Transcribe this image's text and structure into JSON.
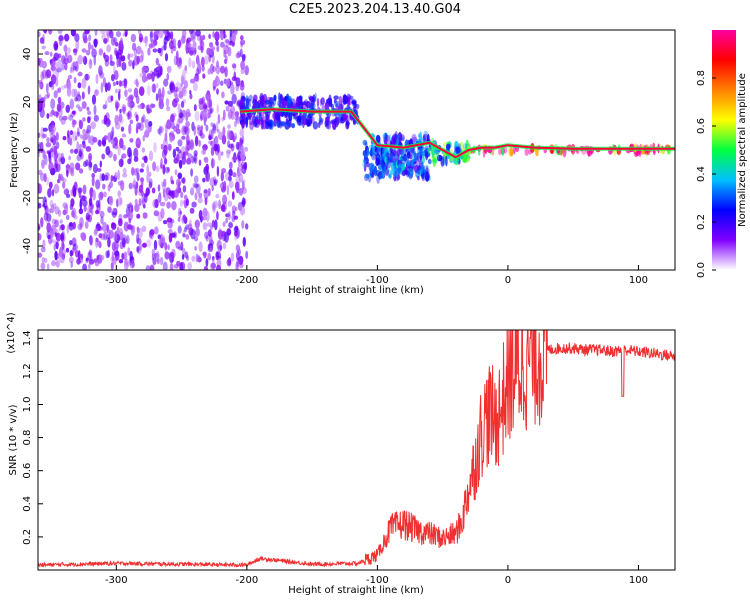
{
  "title": "C2E5.2023.204.13.40.G04",
  "chart_data": [
    {
      "type": "heatmap",
      "xlabel": "Height of straight line (km)",
      "ylabel": "Frequency (Hz)",
      "xlim": [
        -360,
        128
      ],
      "ylim": [
        -50,
        50
      ],
      "xticks": [
        -300,
        -200,
        -100,
        0,
        100
      ],
      "yticks": [
        -40,
        -20,
        0,
        20,
        40
      ],
      "grid": false,
      "regions": [
        {
          "x": [
            -360,
            -200
          ],
          "y": [
            -50,
            50
          ],
          "intensity": 0.12,
          "note_values": "scattered low-amplitude noise"
        },
        {
          "x": [
            -205,
            -115
          ],
          "y": [
            10,
            22
          ],
          "intensity": 0.22
        },
        {
          "x": [
            -110,
            -60
          ],
          "y": [
            -12,
            6
          ],
          "intensity": 0.3
        },
        {
          "x": [
            -60,
            -30
          ],
          "y": [
            -5,
            3
          ],
          "intensity": 0.45
        },
        {
          "x": [
            -30,
            128
          ],
          "y": [
            -1,
            1
          ],
          "intensity": 0.95
        }
      ],
      "ridge": {
        "x": [
          -205,
          -180,
          -150,
          -120,
          -100,
          -80,
          -60,
          -50,
          -40,
          -30,
          -20,
          -10,
          0,
          20,
          50,
          80,
          100,
          128
        ],
        "y": [
          16,
          17,
          16,
          16,
          2,
          1,
          3,
          0,
          -3,
          0,
          1,
          1,
          2,
          1,
          0.5,
          0.5,
          0.5,
          0.5
        ]
      },
      "colorbar": {
        "label": "Normalized spectral amplitude",
        "range": [
          0,
          1
        ],
        "ticks": [
          "0.0",
          "0.2",
          "0.4",
          "0.6",
          "0.8"
        ],
        "colors": [
          "#ffffff",
          "#8000ff",
          "#0000ff",
          "#00c0ff",
          "#00ff40",
          "#ffff00",
          "#ff8000",
          "#ff0000",
          "#ff00a0"
        ]
      }
    },
    {
      "type": "line",
      "xlabel": "Height of straight line (km)",
      "ylabel": "SNR (10 * v/v)",
      "yscale_note": "(x10^4)",
      "xlim": [
        -360,
        128
      ],
      "ylim": [
        0,
        14500
      ],
      "xticks": [
        -300,
        -200,
        -100,
        0,
        100
      ],
      "yticks": [
        "0.2",
        "0.4",
        "0.6",
        "0.8",
        "1.0",
        "1.2",
        "1.4"
      ],
      "grid": false,
      "series": [
        {
          "color": "#f03030",
          "x": [
            -360,
            -300,
            -250,
            -200,
            -190,
            -150,
            -115,
            -100,
            -90,
            -80,
            -70,
            -60,
            -50,
            -40,
            -35,
            -30,
            -25,
            -20,
            -15,
            -10,
            -5,
            0,
            5,
            10,
            15,
            20,
            25,
            30,
            40,
            50,
            60,
            70,
            80,
            90,
            100,
            110,
            120,
            128
          ],
          "y": [
            300,
            400,
            350,
            300,
            700,
            350,
            400,
            900,
            2500,
            2800,
            2400,
            2200,
            1900,
            2200,
            3000,
            5000,
            6500,
            8500,
            9500,
            9000,
            9800,
            11500,
            12000,
            12500,
            12800,
            13000,
            13200,
            13300,
            13400,
            13400,
            13300,
            13300,
            13200,
            13300,
            13200,
            13100,
            13000,
            12900
          ]
        }
      ]
    }
  ]
}
